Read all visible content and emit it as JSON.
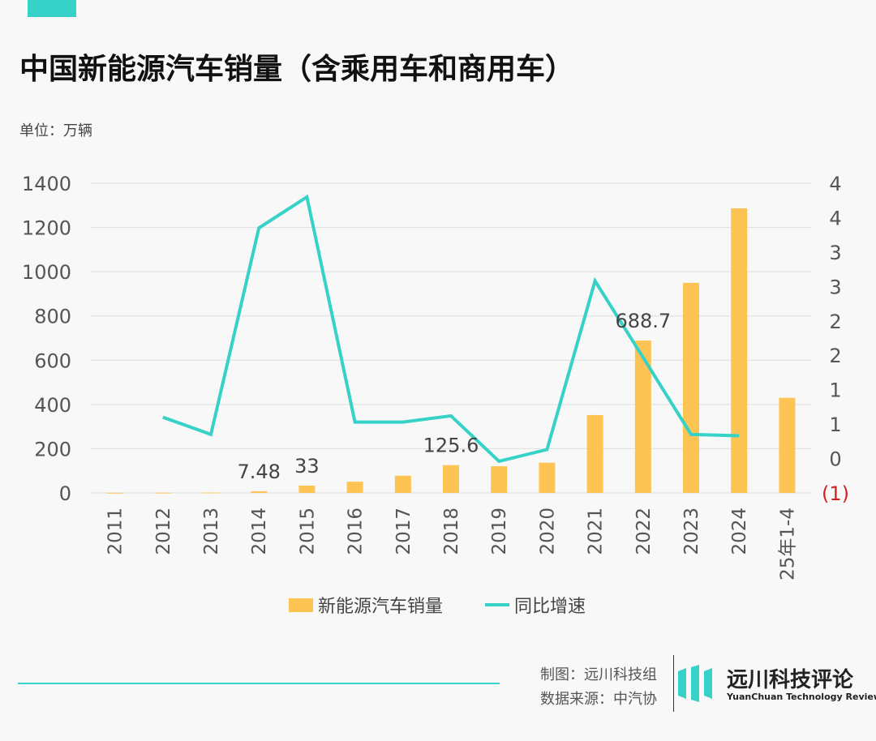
{
  "header": {
    "title": "中国新能源汽车销量（含乘用车和商用车）",
    "unit": "单位：万辆"
  },
  "footer": {
    "credit_made": "制图：远川科技组",
    "credit_source": "数据来源：中汽协",
    "logo_cn": "远川科技评论",
    "logo_en": "YuanChuan Technology Review"
  },
  "colors": {
    "accent": "#36d1c7",
    "bar": "#fdc453",
    "negative": "#d32020"
  },
  "chart_data": {
    "type": "bar",
    "categories": [
      "2011",
      "2012",
      "2013",
      "2014",
      "2015",
      "2016",
      "2017",
      "2018",
      "2019",
      "2020",
      "2021",
      "2022",
      "2023",
      "2024",
      "25年1-4"
    ],
    "series": [
      {
        "name": "新能源汽车销量",
        "type": "bar",
        "axis": "left",
        "values": [
          0.8,
          1.3,
          1.8,
          7.48,
          33,
          50.7,
          77.7,
          125.6,
          120.6,
          136.7,
          352.1,
          688.7,
          949.5,
          1286.6,
          430
        ]
      },
      {
        "name": "同比增速",
        "type": "line",
        "axis": "right",
        "values": [
          null,
          0.6,
          0.35,
          3.35,
          3.8,
          0.53,
          0.53,
          0.62,
          -0.04,
          0.13,
          2.58,
          1.47,
          0.35,
          0.33,
          null
        ]
      }
    ],
    "data_labels": [
      {
        "category": "2014",
        "text": "7.48"
      },
      {
        "category": "2015",
        "text": "33"
      },
      {
        "category": "2018",
        "text": "125.6"
      },
      {
        "category": "2022",
        "text": "688.7"
      }
    ],
    "y_left": {
      "min": 0,
      "max": 1400,
      "ticks": [
        "0",
        "200",
        "400",
        "600",
        "800",
        "1000",
        "1200",
        "1400"
      ]
    },
    "y_right": {
      "min": -0.5,
      "max": 4,
      "ticks": [
        "(1)",
        "0",
        "1",
        "1",
        "2",
        "2",
        "3",
        "3",
        "4",
        "4"
      ]
    },
    "grid": true,
    "legend": {
      "position": "bottom",
      "items": [
        "新能源汽车销量",
        "同比增速"
      ]
    }
  }
}
